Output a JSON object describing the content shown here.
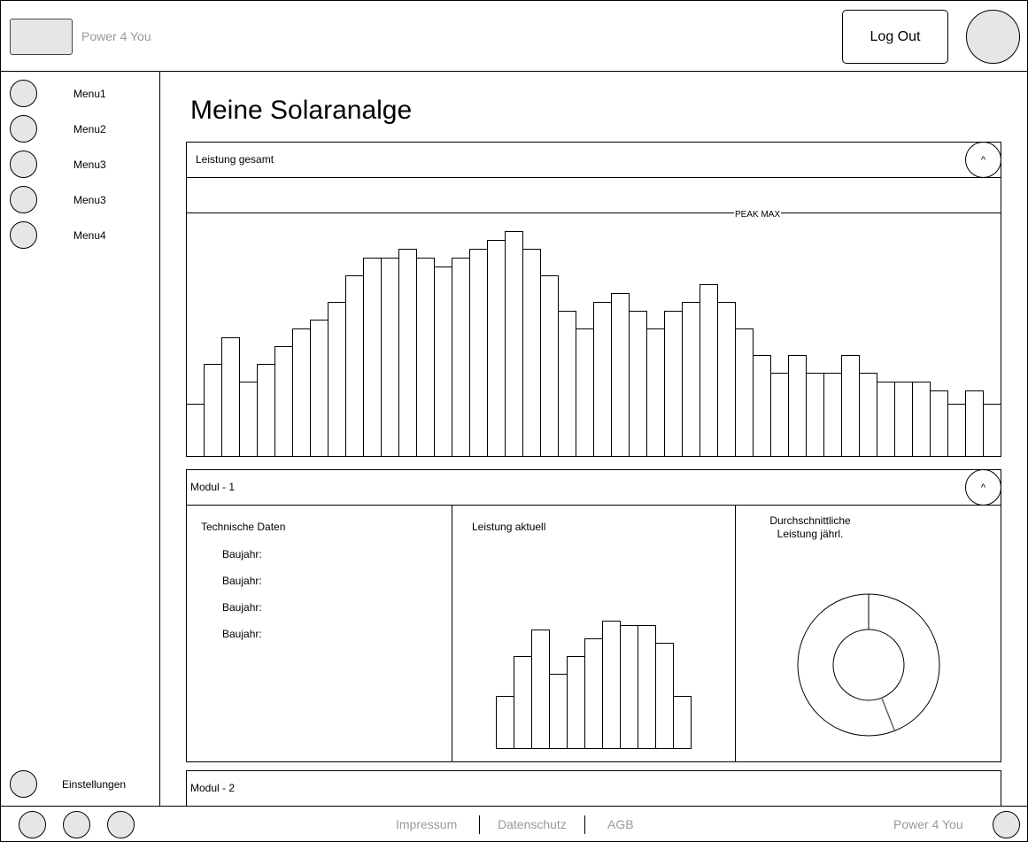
{
  "header": {
    "brand": "Power 4 You",
    "logout_label": "Log Out"
  },
  "sidebar": {
    "items": [
      {
        "label": "Menu1"
      },
      {
        "label": "Menu2"
      },
      {
        "label": "Menu3"
      },
      {
        "label": "Menu3"
      },
      {
        "label": "Menu4"
      }
    ],
    "settings_label": "Einstellungen"
  },
  "main": {
    "title": "Meine Solaranalge",
    "panel_total": {
      "title": "Leistung gesamt",
      "collapse_glyph": "^",
      "peak_label": "PEAK MAX"
    },
    "module1": {
      "title": "Modul - 1",
      "collapse_glyph": "^",
      "tech_title": "Technische Daten",
      "tech_rows": [
        "Baujahr:",
        "Baujahr:",
        "Baujahr:",
        "Baujahr:"
      ],
      "current_title": "Leistung aktuell",
      "avg_title_line1": "Durchschnittliche",
      "avg_title_line2": "Leistung jährl."
    },
    "module2": {
      "title": "Modul - 2"
    }
  },
  "footer": {
    "links": [
      "Impressum",
      "Datenschutz",
      "AGB"
    ],
    "brand": "Power 4 You"
  },
  "chart_data": [
    {
      "type": "bar",
      "values": [
        60,
        105,
        135,
        85,
        105,
        125,
        145,
        155,
        175,
        205,
        225,
        225,
        235,
        225,
        215,
        225,
        235,
        245,
        255,
        235,
        205,
        165,
        145,
        175,
        185,
        165,
        145,
        165,
        175,
        195,
        175,
        145,
        115,
        95,
        115,
        95,
        95,
        115,
        95,
        85,
        85,
        85,
        75,
        60,
        75,
        60
      ]
    },
    {
      "type": "bar",
      "values": [
        60,
        105,
        135,
        85,
        105,
        125,
        145,
        140,
        140,
        120,
        60
      ]
    },
    {
      "type": "pie",
      "values": [
        44,
        56
      ]
    }
  ]
}
